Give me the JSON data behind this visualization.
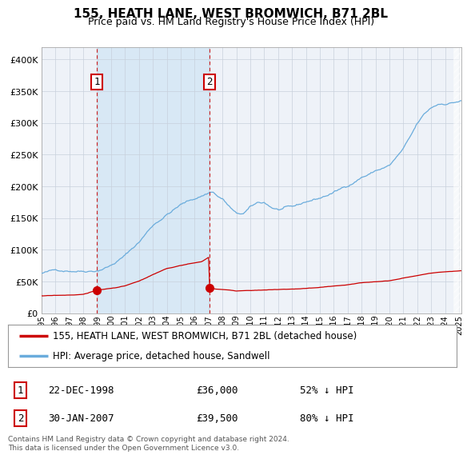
{
  "title": "155, HEATH LANE, WEST BROMWICH, B71 2BL",
  "subtitle": "Price paid vs. HM Land Registry's House Price Index (HPI)",
  "legend_line1": "155, HEATH LANE, WEST BROMWICH, B71 2BL (detached house)",
  "legend_line2": "HPI: Average price, detached house, Sandwell",
  "transaction1_date": "22-DEC-1998",
  "transaction1_price": 36000,
  "transaction1_label": "52% ↓ HPI",
  "transaction2_date": "30-JAN-2007",
  "transaction2_price": 39500,
  "transaction2_label": "80% ↓ HPI",
  "footnote": "Contains HM Land Registry data © Crown copyright and database right 2024.\nThis data is licensed under the Open Government Licence v3.0.",
  "hpi_color": "#6aacdc",
  "price_color": "#cc0000",
  "background_color": "#ffffff",
  "plot_bg_color": "#eef2f8",
  "shade_color": "#d8e8f5",
  "grid_color": "#c8d0dc",
  "ylim_max": 420000,
  "ylim_min": 0,
  "t1": 1998.97,
  "t2": 2007.08
}
